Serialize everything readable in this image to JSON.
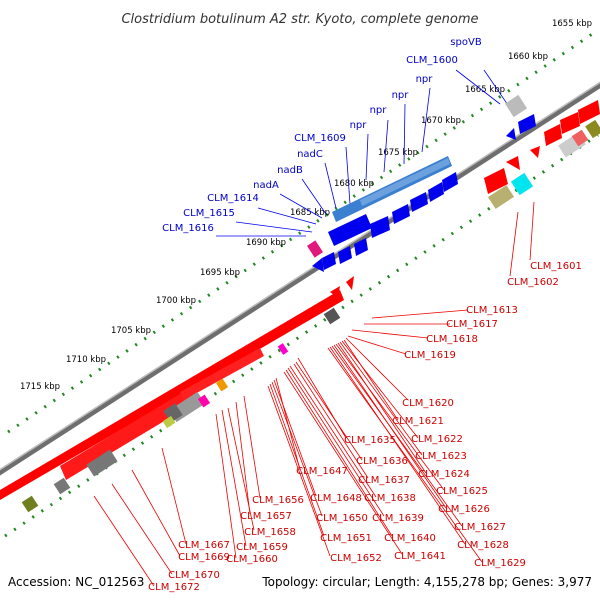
{
  "title": "Clostridium botulinum A2 str. Kyoto, complete genome",
  "footer": {
    "accession": "Accession: NC_012563",
    "summary": "Topology: circular; Length: 4,155,278 bp; Genes: 3,977"
  },
  "colors": {
    "forward_gene": "#ff0000",
    "reverse_gene": "#0000ff",
    "forward_label": "#cc0000",
    "reverse_label": "#0000cc",
    "backbone": "#888888",
    "tick": "#228822"
  },
  "scale_labels": [
    "1655 kbp",
    "1660 kbp",
    "1665 kbp",
    "1670 kbp",
    "1675 kbp",
    "1680 kbp",
    "1685 kbp",
    "1690 kbp",
    "1695 kbp",
    "1700 kbp",
    "1705 kbp",
    "1710 kbp",
    "1715 kbp"
  ],
  "reverse_labels": [
    "spoVB",
    "CLM_1600",
    "npr",
    "npr",
    "npr",
    "npr",
    "CLM_1609",
    "nadC",
    "nadB",
    "nadA",
    "CLM_1614",
    "CLM_1615",
    "CLM_1616"
  ],
  "forward_labels": [
    "CLM_1601",
    "CLM_1602",
    "CLM_1613",
    "CLM_1617",
    "CLM_1618",
    "CLM_1619",
    "CLM_1620",
    "CLM_1621",
    "CLM_1622",
    "CLM_1623",
    "CLM_1624",
    "CLM_1625",
    "CLM_1626",
    "CLM_1627",
    "CLM_1628",
    "CLM_1629",
    "CLM_1635",
    "CLM_1636",
    "CLM_1637",
    "CLM_1638",
    "CLM_1639",
    "CLM_1640",
    "CLM_1641",
    "CLM_1647",
    "CLM_1648",
    "CLM_1650",
    "CLM_1651",
    "CLM_1652",
    "CLM_1656",
    "CLM_1657",
    "CLM_1658",
    "CLM_1659",
    "CLM_1660",
    "CLM_1667",
    "CLM_1669",
    "CLM_1670",
    "CLM_1672"
  ]
}
